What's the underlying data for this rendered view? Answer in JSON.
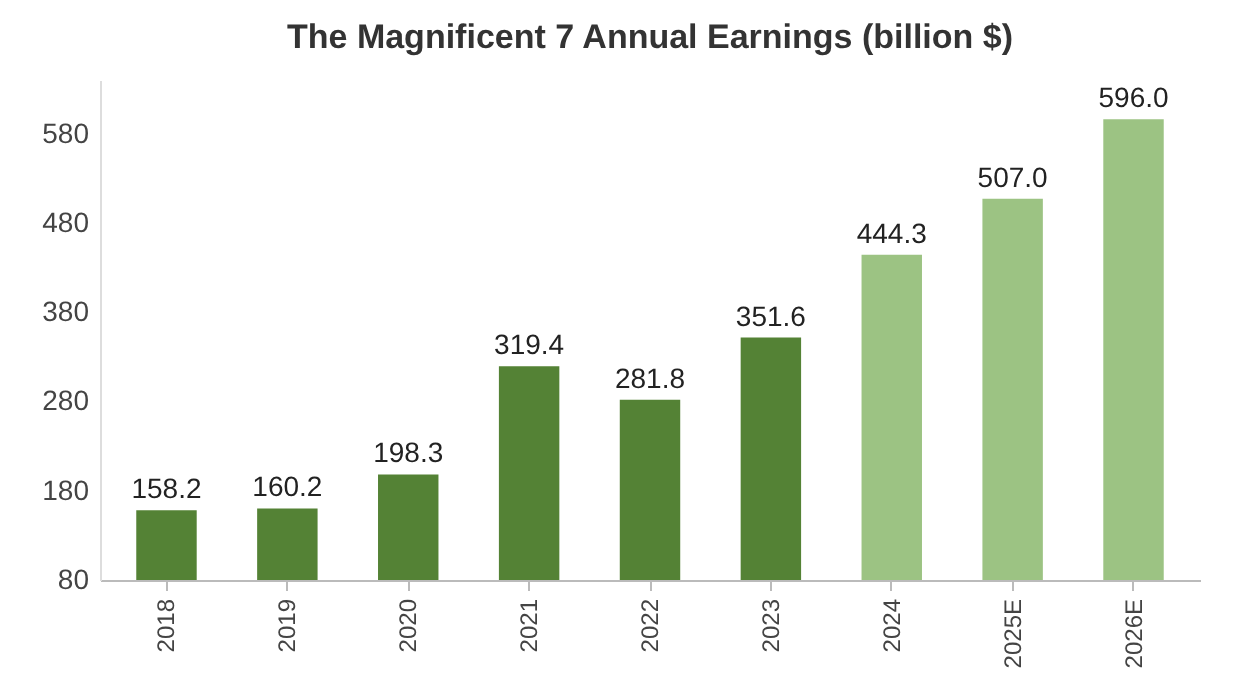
{
  "chart_data": {
    "type": "bar",
    "title": "The Magnificent 7 Annual Earnings (billion $)",
    "categories": [
      "2018",
      "2019",
      "2020",
      "2021",
      "2022",
      "2023",
      "2024",
      "2025E",
      "2026E"
    ],
    "values": [
      158.2,
      160.2,
      198.3,
      319.4,
      281.8,
      351.6,
      444.3,
      507.0,
      596.0
    ],
    "colors": [
      "#548235",
      "#548235",
      "#548235",
      "#548235",
      "#548235",
      "#548235",
      "#9cc383",
      "#9cc383",
      "#9cc383"
    ],
    "value_labels": [
      "158.2",
      "160.2",
      "198.3",
      "319.4",
      "281.8",
      "351.6",
      "444.3",
      "507.0",
      "596.0"
    ],
    "ylim": [
      80,
      640
    ],
    "yticks": [
      80,
      180,
      280,
      380,
      480,
      580
    ],
    "grid": false
  }
}
